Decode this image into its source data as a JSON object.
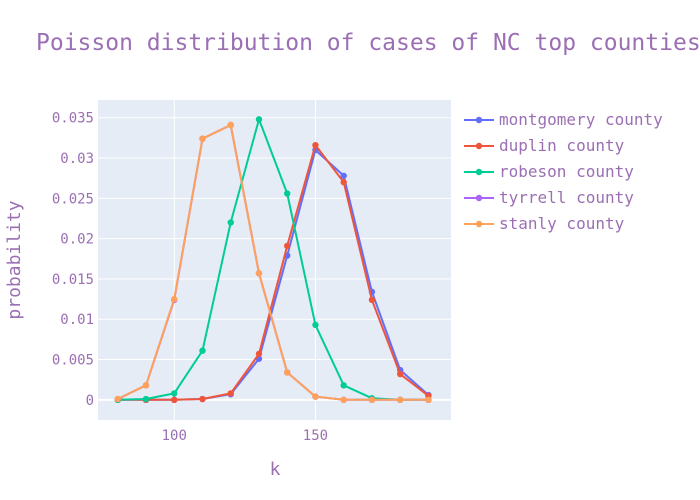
{
  "chart_data": {
    "type": "line",
    "title": "Poisson distribution of cases of NC top counties",
    "xlabel": "k",
    "ylabel": "probability",
    "xlim": [
      73,
      198
    ],
    "ylim": [
      -0.0025,
      0.0372
    ],
    "grid": true,
    "legend_position": "right",
    "x_ticks": [
      100,
      150
    ],
    "x_tick_labels": [
      "100",
      "150"
    ],
    "y_ticks": [
      0,
      0.005,
      0.01,
      0.015,
      0.02,
      0.025,
      0.03,
      0.035
    ],
    "y_tick_labels": [
      "0",
      "0.005",
      "0.01",
      "0.015",
      "0.02",
      "0.025",
      "0.03",
      "0.035"
    ],
    "x": [
      80,
      90,
      100,
      110,
      120,
      130,
      140,
      150,
      160,
      170,
      180,
      190
    ],
    "series": [
      {
        "name": "montgomery county",
        "color": "#636efa",
        "values": [
          0.0,
          0.0,
          0.0,
          0.0001,
          0.0007,
          0.0051,
          0.0179,
          0.031,
          0.0278,
          0.0134,
          0.0037,
          0.0006
        ]
      },
      {
        "name": "duplin county",
        "color": "#ef553b",
        "values": [
          0.0,
          0.0,
          0.0,
          0.0001,
          0.0008,
          0.0057,
          0.0191,
          0.0316,
          0.027,
          0.0124,
          0.0032,
          0.0005
        ]
      },
      {
        "name": "robeson county",
        "color": "#00cc96",
        "values": [
          0.0,
          0.0001,
          0.0008,
          0.0061,
          0.022,
          0.0348,
          0.0256,
          0.0093,
          0.0018,
          0.0002,
          0.0,
          0.0
        ]
      },
      {
        "name": "tyrrell county",
        "color": "#ab63fa",
        "values": [
          0.0001,
          0.0018,
          0.0124,
          0.0324,
          0.0341,
          0.0157,
          0.0034,
          0.0004,
          0.0,
          0.0,
          0.0,
          0.0
        ]
      },
      {
        "name": "stanly county",
        "color": "#ffa15a",
        "values": [
          0.0001,
          0.0018,
          0.0125,
          0.0324,
          0.0341,
          0.0157,
          0.0034,
          0.0004,
          0.0,
          0.0,
          0.0,
          0.0
        ]
      }
    ]
  },
  "colors": {
    "plot_background": "#e5ecf6",
    "gridline": "#ffffff",
    "text": "#9b6fb3"
  }
}
